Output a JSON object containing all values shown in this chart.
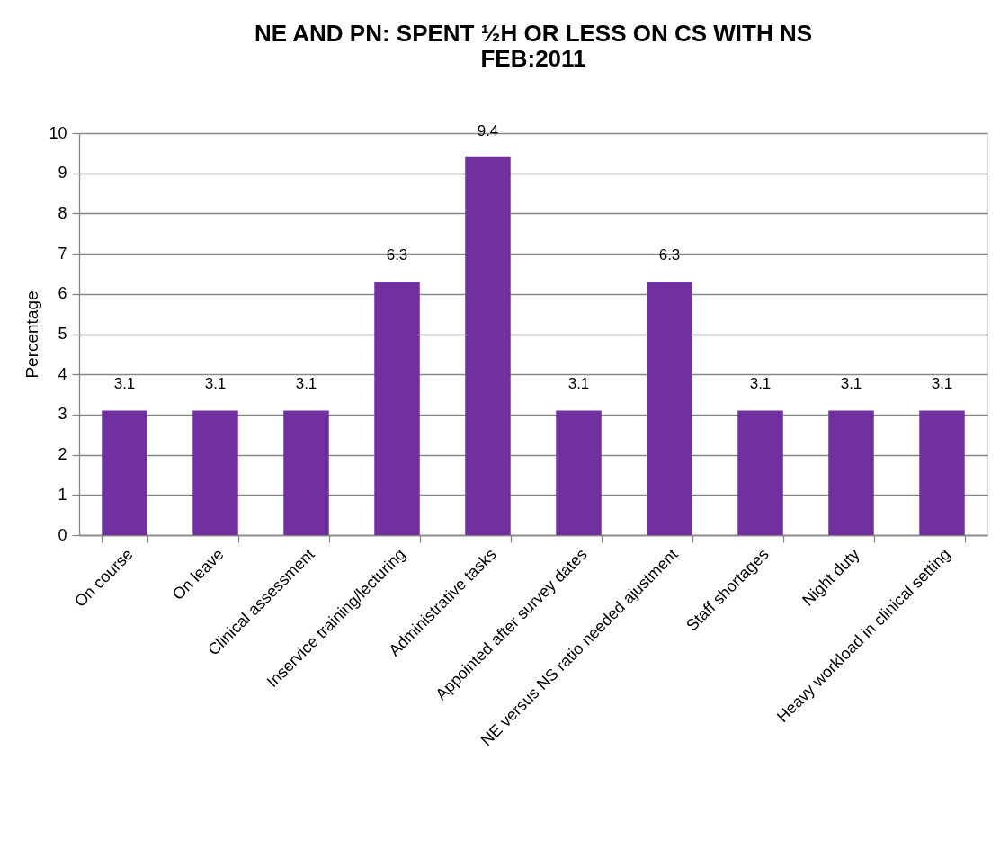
{
  "chart_data": {
    "type": "bar",
    "title": "NE AND PN: SPENT ½H OR LESS ON CS WITH NS\nFEB:2011",
    "ylabel": "Percentage",
    "categories": [
      "On course",
      "On leave",
      "Clinical assessment",
      "Inservice training/lecturing",
      "Administrative tasks",
      "Appointed after survey dates",
      "NE versus NS ratio needed ajustment",
      "Staff shortages",
      "Night duty",
      "Heavy workload in clinical setting"
    ],
    "values": [
      3.1,
      3.1,
      3.1,
      6.3,
      9.4,
      3.1,
      6.3,
      3.1,
      3.1,
      3.1
    ],
    "color": "#7030a0",
    "ylim": [
      0,
      10
    ],
    "yticks": [
      0,
      1,
      2,
      3,
      4,
      5,
      6,
      7,
      8,
      9,
      10
    ],
    "grid": "y",
    "data_labels": true
  }
}
